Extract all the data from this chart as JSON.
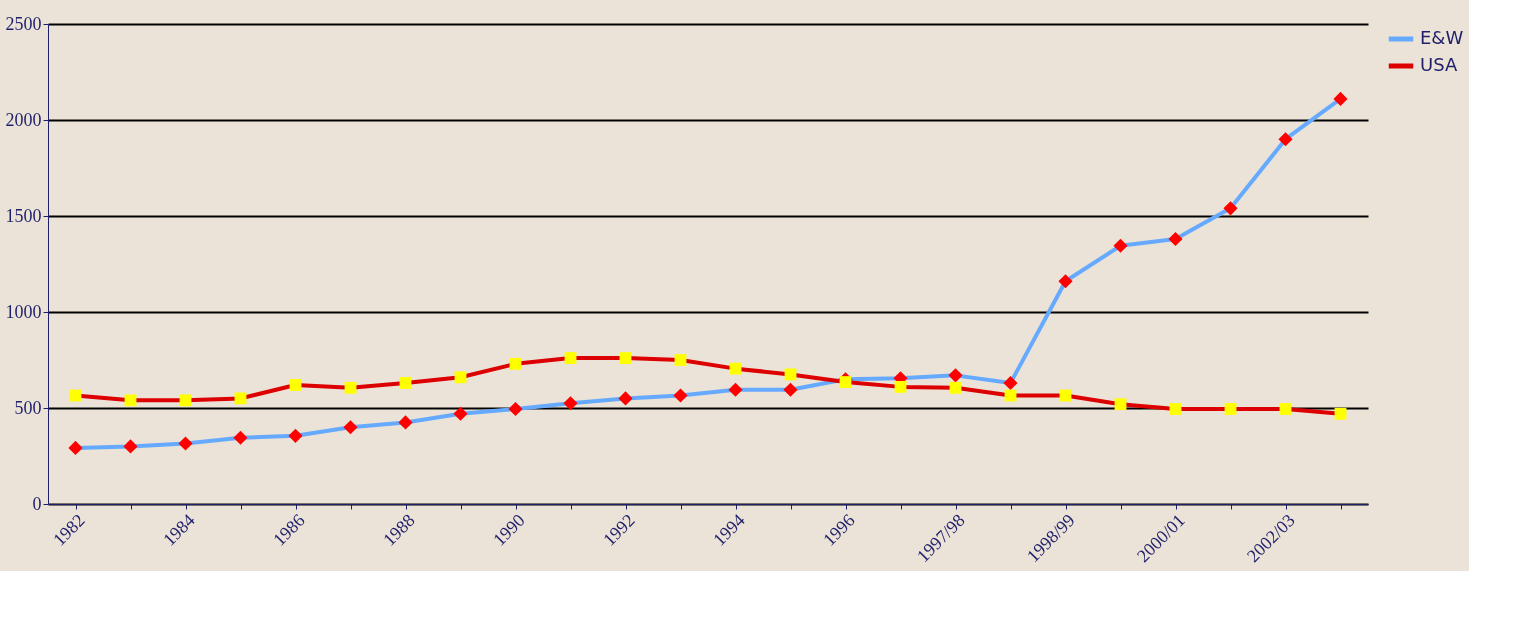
{
  "chart_data": {
    "type": "line",
    "categories": [
      "1982",
      null,
      "1984",
      null,
      "1986",
      null,
      "1988",
      null,
      "1990",
      null,
      "1992",
      null,
      "1994",
      null,
      "1996",
      null,
      "1997/98",
      null,
      "1998/99",
      null,
      "2000/01",
      null,
      "2002/03",
      null
    ],
    "series": [
      {
        "name": "E&W",
        "color": "#66aaff",
        "marker": "diamond",
        "values": [
          292,
          300,
          315,
          345,
          355,
          400,
          425,
          470,
          495,
          525,
          550,
          565,
          595,
          595,
          650,
          655,
          670,
          630,
          1160,
          1345,
          1380,
          1540,
          1900,
          2110
        ]
      },
      {
        "name": "USA",
        "color": "#dd0000",
        "marker": "square",
        "values": [
          565,
          540,
          540,
          550,
          620,
          605,
          630,
          660,
          730,
          760,
          760,
          750,
          705,
          675,
          635,
          610,
          605,
          565,
          565,
          520,
          495,
          495,
          495,
          470
        ]
      }
    ],
    "ylim": [
      0,
      2500
    ],
    "yticks": [
      0,
      500,
      1000,
      1500,
      2000,
      2500
    ],
    "grid": "y",
    "legend": "right",
    "line_style": "solid"
  }
}
